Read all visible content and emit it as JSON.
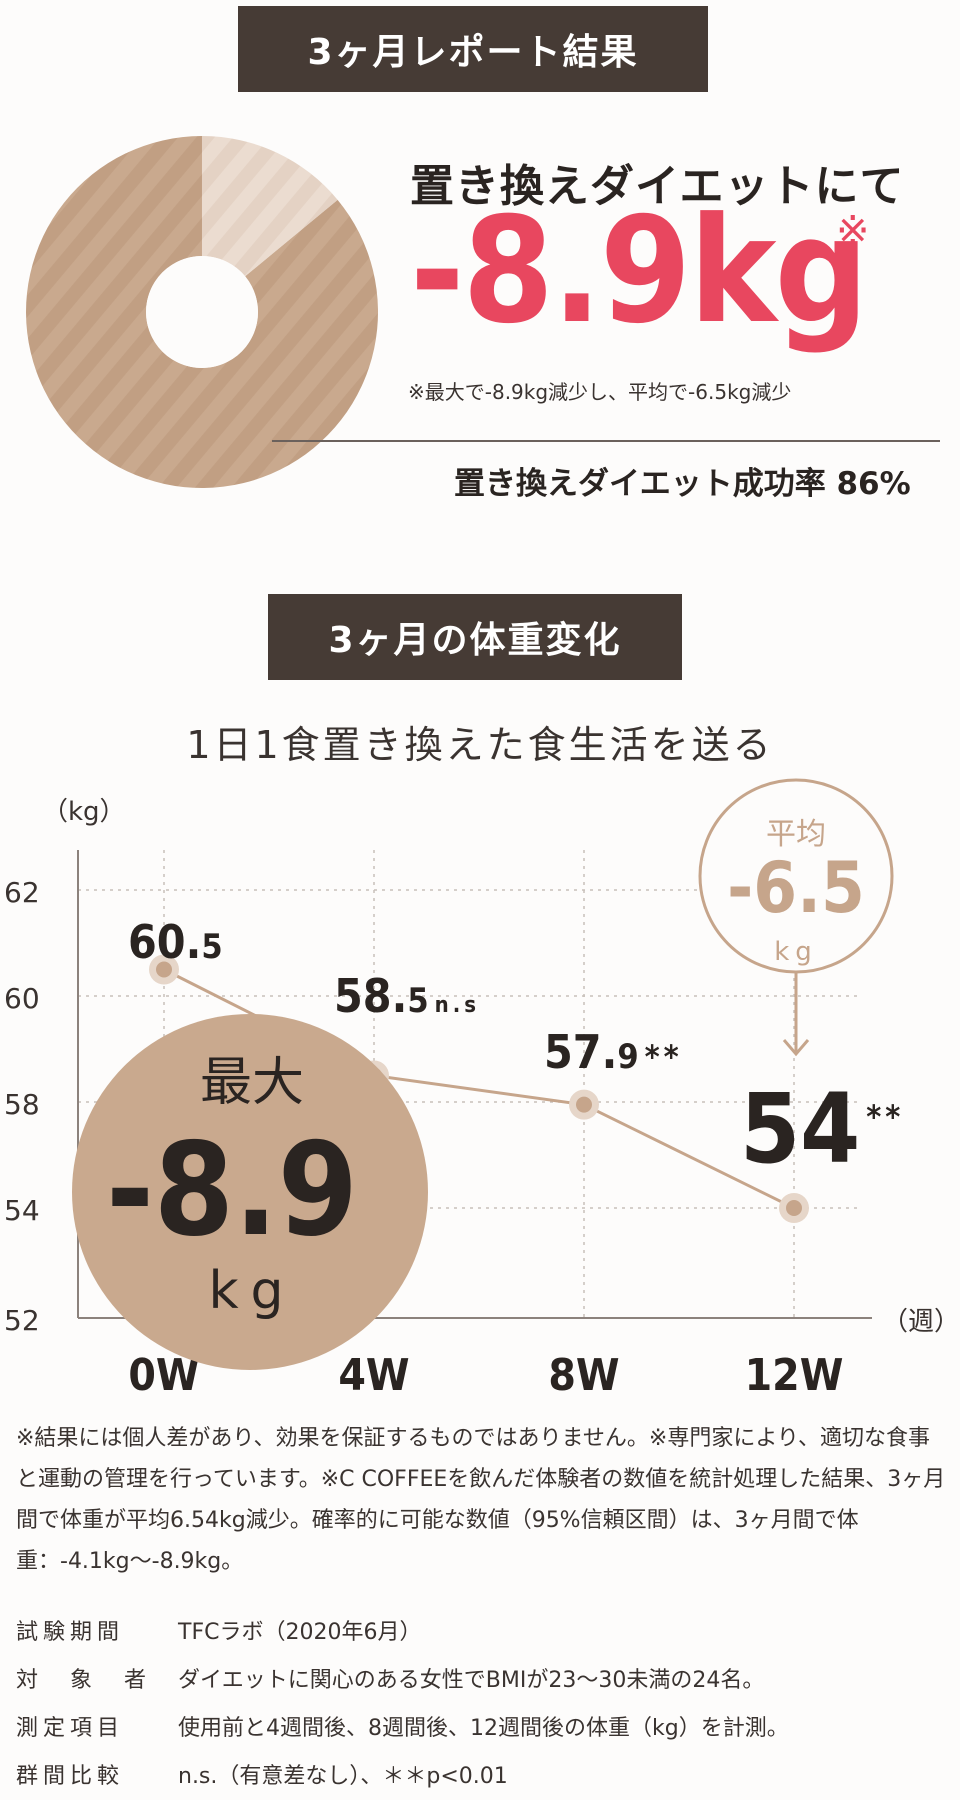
{
  "report": {
    "label": "3ヶ月レポート結果",
    "headline": "置き換えダイエットにて",
    "big_value": "-8.9kg",
    "asterisk": "※",
    "note": "※最大で-8.9kg減少し、平均で-6.5kg減少",
    "success_rate_label": "置き換えダイエット成功率 86%",
    "success_rate_value": 86
  },
  "colors": {
    "label_bg": "#463b35",
    "accent": "#e8475f",
    "tan": "#c9a98e",
    "tan_light": "#ebdcd0",
    "line": "#c6a58b"
  },
  "weight": {
    "label": "3ヶ月の体重変化",
    "subtitle": "1日1食置き換えた食生活を送る",
    "ylabel": "（kg）",
    "xlabel": "（週）",
    "max_badge": {
      "title": "最大",
      "value": "-8.9",
      "unit": "kg"
    },
    "avg_badge": {
      "title": "平均",
      "value": "-6.5",
      "unit": "kg"
    }
  },
  "chart_data": {
    "type": "line",
    "x": [
      "0W",
      "4W",
      "8W",
      "12W"
    ],
    "y_ticks": [
      "62",
      "60",
      "58",
      "54",
      "52"
    ],
    "series": [
      {
        "values": [
          60.5,
          58.5,
          57.9,
          54
        ]
      }
    ],
    "point_labels": [
      {
        "main": "60.",
        "small": "5",
        "suffix": ""
      },
      {
        "main": "58.",
        "small": "5",
        "suffix": "n.s"
      },
      {
        "main": "57.",
        "small": "9",
        "suffix": "**"
      },
      {
        "main": "54",
        "small": "",
        "suffix": "**"
      }
    ],
    "grid": true
  },
  "notes": {
    "disclaimer": "※結果には個人差があり、効果を保証するものではありません。※専門家により、適切な食事と運動の管理を行っています。※C COFFEEを飲んだ体験者の数値を統計処理した結果、3ヶ月間で体重が平均6.54kg減少。確率的に可能な数値（95%信頼区間）は、3ヶ月間で体重：-4.1kg〜-8.9kg。",
    "info": [
      {
        "key": "試験期間",
        "value": "TFCラボ（2020年6月）"
      },
      {
        "key": "対　象　者",
        "value": "ダイエットに関心のある女性でBMIが23〜30未満の24名。"
      },
      {
        "key": "測定項目",
        "value": "使用前と4週間後、8週間後、12週間後の体重（kg）を計測。"
      },
      {
        "key": "群間比較",
        "value": "n.s.（有意差なし）、＊＊p<0.01"
      }
    ]
  }
}
